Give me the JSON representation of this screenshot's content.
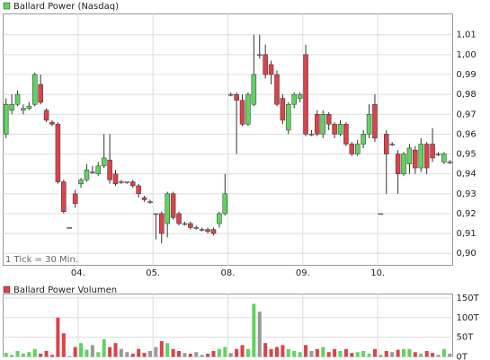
{
  "chart_data": [
    {
      "type": "candlestick",
      "title": "Ballard Power (Nasdaq)",
      "color": "#5fd35f",
      "up_color": "#5fd35f",
      "down_color": "#d9434b",
      "flat_color": "#999999",
      "annotation": "1 Tick = 30 Min.",
      "categories": [
        null,
        null,
        null,
        null,
        null,
        null,
        null,
        null,
        null,
        null,
        null,
        null,
        null,
        "04.",
        null,
        null,
        null,
        null,
        null,
        null,
        null,
        null,
        null,
        null,
        null,
        null,
        "05.",
        null,
        null,
        null,
        null,
        null,
        null,
        null,
        null,
        null,
        null,
        null,
        null,
        "08.",
        null,
        null,
        null,
        null,
        null,
        null,
        null,
        null,
        null,
        null,
        null,
        null,
        "09.",
        null,
        null,
        null,
        null,
        null,
        null,
        null,
        null,
        null,
        null,
        null,
        null,
        "10.",
        null,
        null,
        null,
        null,
        null,
        null,
        null,
        null,
        null,
        null,
        null,
        null
      ],
      "open": [
        0.96,
        0.972,
        0.975,
        0.972,
        0.973,
        0.975,
        0.985,
        0.972,
        0.966,
        0.965,
        0.936,
        0.913,
        0.93,
        0.935,
        0.937,
        0.941,
        0.94,
        0.944,
        0.947,
        0.94,
        0.936,
        0.936,
        0.936,
        0.934,
        0.928,
        0.926,
        0.92,
        0.92,
        0.915,
        0.93,
        0.92,
        0.915,
        0.915,
        0.913,
        0.912,
        0.912,
        0.912,
        0.915,
        0.92,
        0.98,
        0.98,
        0.977,
        0.965,
        0.975,
        1.0,
        1.0,
        0.995,
        0.99,
        0.978,
        0.962,
        0.975,
        0.978,
        1.0,
        0.96,
        0.97,
        0.96,
        0.97,
        0.965,
        0.96,
        0.965,
        0.955,
        0.95,
        0.955,
        0.96,
        0.975,
        0.92,
        0.96,
        0.955,
        0.95,
        0.94,
        0.945,
        0.952,
        0.943,
        0.955,
        0.955,
        0.95,
        0.946,
        0.946
      ],
      "high": [
        0.978,
        0.98,
        0.982,
        0.975,
        0.976,
        0.991,
        0.99,
        0.973,
        0.967,
        0.966,
        0.937,
        0.913,
        0.932,
        0.938,
        0.945,
        0.944,
        0.946,
        0.96,
        0.96,
        0.942,
        0.937,
        0.936,
        0.937,
        0.935,
        0.929,
        0.927,
        0.92,
        0.921,
        0.931,
        0.931,
        0.921,
        0.916,
        0.916,
        0.914,
        0.913,
        0.913,
        0.913,
        0.921,
        0.94,
        0.981,
        0.981,
        0.98,
        0.981,
        1.01,
        1.01,
        1.005,
        0.997,
        0.992,
        0.98,
        0.976,
        0.981,
        0.981,
        1.005,
        0.962,
        0.972,
        0.972,
        0.971,
        0.966,
        0.967,
        0.966,
        0.956,
        0.957,
        0.962,
        0.975,
        0.98,
        0.92,
        0.962,
        0.956,
        0.952,
        0.951,
        0.955,
        0.954,
        0.958,
        0.956,
        0.963,
        0.951,
        0.951,
        0.947
      ],
      "low": [
        0.958,
        0.97,
        0.974,
        0.97,
        0.972,
        0.974,
        0.975,
        0.966,
        0.964,
        0.935,
        0.92,
        0.913,
        0.923,
        0.933,
        0.936,
        0.94,
        0.939,
        0.943,
        0.935,
        0.934,
        0.935,
        0.935,
        0.933,
        0.928,
        0.926,
        0.925,
        0.907,
        0.905,
        0.908,
        0.917,
        0.914,
        0.914,
        0.912,
        0.912,
        0.911,
        0.91,
        0.909,
        0.913,
        0.919,
        0.979,
        0.95,
        0.964,
        0.964,
        0.974,
        0.998,
        0.988,
        0.985,
        0.974,
        0.965,
        0.96,
        0.973,
        0.976,
        0.959,
        0.959,
        0.959,
        0.958,
        0.962,
        0.958,
        0.959,
        0.954,
        0.949,
        0.949,
        0.953,
        0.958,
        0.956,
        0.92,
        0.93,
        0.954,
        0.93,
        0.939,
        0.94,
        0.94,
        0.941,
        0.94,
        0.946,
        0.949,
        0.945,
        0.945
      ],
      "close": [
        0.975,
        0.975,
        0.98,
        0.973,
        0.974,
        0.99,
        0.976,
        0.967,
        0.965,
        0.936,
        0.921,
        0.913,
        0.925,
        0.937,
        0.942,
        0.941,
        0.944,
        0.948,
        0.937,
        0.935,
        0.936,
        0.936,
        0.934,
        0.93,
        0.927,
        0.926,
        0.92,
        0.91,
        0.93,
        0.918,
        0.915,
        0.915,
        0.913,
        0.913,
        0.912,
        0.911,
        0.91,
        0.92,
        0.93,
        0.98,
        0.977,
        0.965,
        0.98,
        0.99,
        1.0,
        0.99,
        0.99,
        0.975,
        0.967,
        0.975,
        0.98,
        0.98,
        0.96,
        0.96,
        0.96,
        0.97,
        0.965,
        0.96,
        0.965,
        0.955,
        0.95,
        0.955,
        0.96,
        0.97,
        0.958,
        0.92,
        0.95,
        0.955,
        0.94,
        0.95,
        0.953,
        0.943,
        0.955,
        0.943,
        0.948,
        0.95,
        0.95,
        0.946
      ],
      "ylim": [
        0.894,
        1.0205
      ],
      "yticks": [
        {
          "value": 0.9,
          "label": "0,90"
        },
        {
          "value": 0.91,
          "label": "0,91"
        },
        {
          "value": 0.92,
          "label": "0,92"
        },
        {
          "value": 0.93,
          "label": "0,93"
        },
        {
          "value": 0.94,
          "label": "0,94"
        },
        {
          "value": 0.95,
          "label": "0,95"
        },
        {
          "value": 0.96,
          "label": "0,96"
        },
        {
          "value": 0.97,
          "label": "0,97"
        },
        {
          "value": 0.98,
          "label": "0,98"
        },
        {
          "value": 0.99,
          "label": "0,99"
        },
        {
          "value": 1.0,
          "label": "1,00"
        },
        {
          "value": 1.01,
          "label": "1,01"
        }
      ],
      "grid": true
    },
    {
      "type": "bar",
      "title": "Ballard Power Volumen",
      "color": "#d9434b",
      "values": [
        10,
        5,
        15,
        8,
        12,
        20,
        8,
        15,
        5,
        100,
        60,
        2,
        25,
        35,
        18,
        30,
        12,
        45,
        25,
        35,
        20,
        12,
        8,
        20,
        10,
        15,
        25,
        40,
        35,
        20,
        15,
        10,
        8,
        12,
        5,
        8,
        15,
        20,
        25,
        10,
        20,
        30,
        20,
        135,
        115,
        35,
        20,
        25,
        30,
        20,
        15,
        12,
        30,
        15,
        20,
        25,
        12,
        20,
        15,
        20,
        10,
        12,
        15,
        8,
        20,
        5,
        15,
        12,
        18,
        20,
        20,
        12,
        8,
        15,
        10,
        5,
        20,
        8
      ],
      "ylim": [
        0,
        160
      ],
      "yticks": [
        {
          "value": 0,
          "label": "0T"
        },
        {
          "value": 50,
          "label": "50T"
        },
        {
          "value": 100,
          "label": "100T"
        },
        {
          "value": 150,
          "label": "150T"
        }
      ],
      "grid": true
    }
  ]
}
